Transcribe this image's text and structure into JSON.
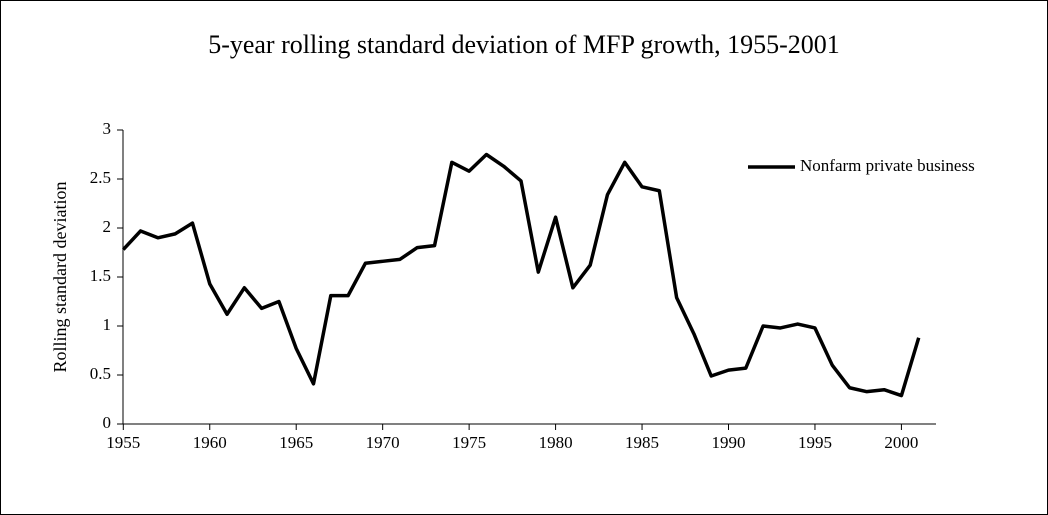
{
  "chart_data": {
    "type": "line",
    "title": "5-year rolling standard deviation of MFP growth, 1955-2001",
    "y_label": "Rolling standard deviation",
    "x": [
      1955,
      1956,
      1957,
      1958,
      1959,
      1960,
      1961,
      1962,
      1963,
      1964,
      1965,
      1966,
      1967,
      1968,
      1969,
      1970,
      1971,
      1972,
      1973,
      1974,
      1975,
      1976,
      1977,
      1978,
      1979,
      1980,
      1981,
      1982,
      1983,
      1984,
      1985,
      1986,
      1987,
      1988,
      1989,
      1990,
      1991,
      1992,
      1993,
      1994,
      1995,
      1996,
      1997,
      1998,
      1999,
      2000,
      2001
    ],
    "series": [
      {
        "name": "Nonfarm private business",
        "color": "#000000",
        "values": [
          1.78,
          1.97,
          1.9,
          1.94,
          2.05,
          1.43,
          1.12,
          1.39,
          1.18,
          1.25,
          0.77,
          0.41,
          1.31,
          1.31,
          1.64,
          1.66,
          1.68,
          1.8,
          1.82,
          2.67,
          2.58,
          2.75,
          2.63,
          2.48,
          1.55,
          2.11,
          1.39,
          1.62,
          2.34,
          2.67,
          2.42,
          2.38,
          1.29,
          0.92,
          0.49,
          0.55,
          0.57,
          1.0,
          0.98,
          1.02,
          0.98,
          0.6,
          0.37,
          0.33,
          0.35,
          0.29,
          0.88
        ]
      }
    ],
    "xlim": [
      1954,
      2002
    ],
    "xticks": [
      1955,
      1960,
      1965,
      1970,
      1975,
      1980,
      1985,
      1990,
      1995,
      2000
    ],
    "ylim": [
      0,
      3
    ],
    "yticks": [
      0,
      0.5,
      1,
      1.5,
      2,
      2.5,
      3
    ],
    "legend": "upper right"
  }
}
